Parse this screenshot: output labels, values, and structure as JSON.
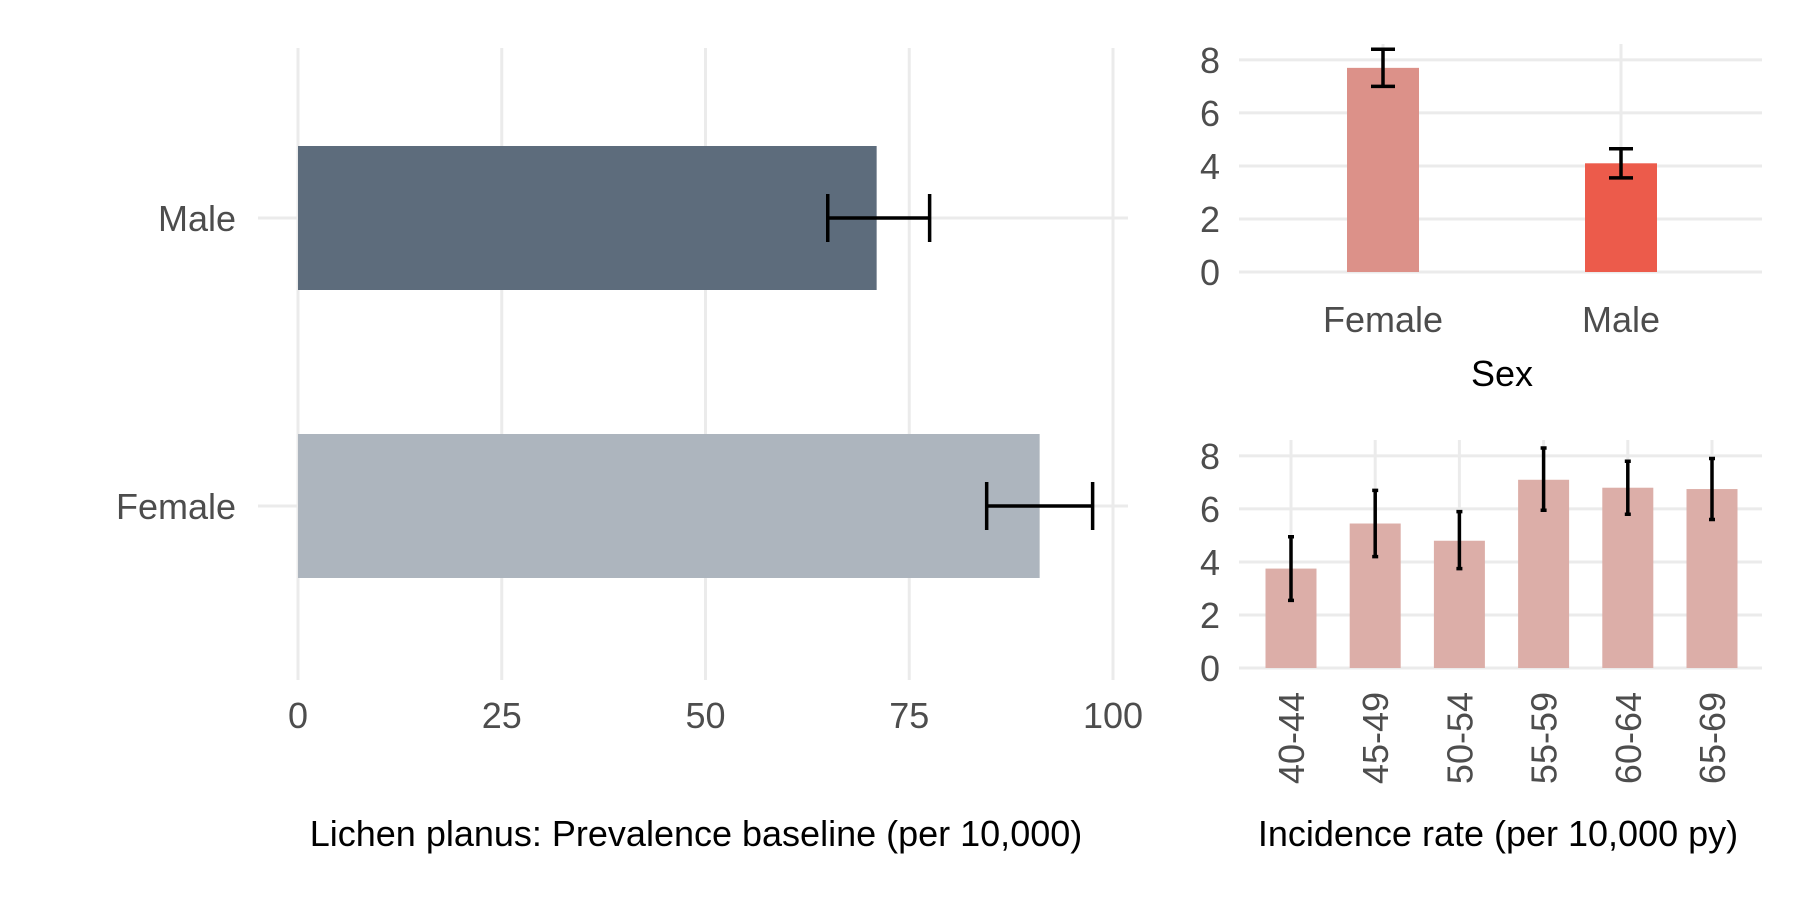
{
  "chart_data": [
    {
      "type": "bar",
      "orientation": "horizontal",
      "xlabel": "Lichen planus: Prevalence baseline (per 10,000)",
      "ylabel": "",
      "xlim": [
        0,
        100
      ],
      "xticks": [
        "0",
        "25",
        "50",
        "75",
        "100"
      ],
      "grid": true,
      "legend": "none",
      "categories": [
        "Male",
        "Female"
      ],
      "values": [
        71,
        91
      ],
      "ci_low": [
        65,
        84.5
      ],
      "ci_high": [
        77.5,
        97.5
      ],
      "colors": [
        "#5d6c7c",
        "#adb5be"
      ]
    },
    {
      "type": "bar",
      "xlabel": "Sex",
      "ylabel": "",
      "ylim": [
        0,
        8.6
      ],
      "yticks": [
        "0",
        "2",
        "4",
        "6",
        "8"
      ],
      "grid": true,
      "legend": "none",
      "categories": [
        "Female",
        "Male"
      ],
      "values": [
        7.7,
        4.1
      ],
      "ci_low": [
        7.0,
        3.55
      ],
      "ci_high": [
        8.4,
        4.65
      ],
      "colors": [
        "#dc9189",
        "#ec5b4b"
      ]
    },
    {
      "type": "bar",
      "xlabel": "Incidence rate (per 10,000 py)",
      "ylabel": "",
      "ylim": [
        0,
        8.6
      ],
      "yticks": [
        "0",
        "2",
        "4",
        "6",
        "8"
      ],
      "grid": true,
      "legend": "none",
      "categories": [
        "40-44",
        "45-49",
        "50-54",
        "55-59",
        "60-64",
        "65-69"
      ],
      "values": [
        3.75,
        5.45,
        4.8,
        7.1,
        6.8,
        6.75
      ],
      "ci_low": [
        2.55,
        4.2,
        3.75,
        5.95,
        5.8,
        5.6
      ],
      "ci_high": [
        4.95,
        6.7,
        5.9,
        8.3,
        7.8,
        7.9
      ],
      "colors": [
        "#dcaea8"
      ]
    }
  ]
}
